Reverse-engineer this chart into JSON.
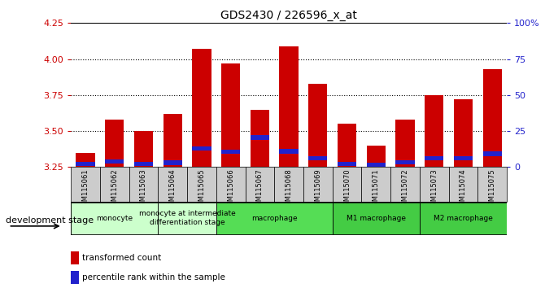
{
  "title": "GDS2430 / 226596_x_at",
  "samples": [
    "GSM115061",
    "GSM115062",
    "GSM115063",
    "GSM115064",
    "GSM115065",
    "GSM115066",
    "GSM115067",
    "GSM115068",
    "GSM115069",
    "GSM115070",
    "GSM115071",
    "GSM115072",
    "GSM115073",
    "GSM115074",
    "GSM115075"
  ],
  "transformed_count": [
    3.35,
    3.58,
    3.5,
    3.62,
    4.07,
    3.97,
    3.65,
    4.09,
    3.83,
    3.55,
    3.4,
    3.58,
    3.75,
    3.72,
    3.93
  ],
  "blue_segment_bottom": [
    3.255,
    3.275,
    3.257,
    3.265,
    3.365,
    3.34,
    3.44,
    3.345,
    3.295,
    3.258,
    3.252,
    3.268,
    3.298,
    3.298,
    3.328
  ],
  "blue_segment_height": [
    0.03,
    0.03,
    0.03,
    0.03,
    0.03,
    0.03,
    0.03,
    0.03,
    0.03,
    0.03,
    0.03,
    0.03,
    0.03,
    0.03,
    0.03
  ],
  "bar_bottom": 3.25,
  "ylim": [
    3.25,
    4.25
  ],
  "yticks": [
    3.25,
    3.5,
    3.75,
    4.0,
    4.25
  ],
  "right_yticks": [
    0,
    25,
    50,
    75,
    100
  ],
  "red_color": "#cc0000",
  "blue_color": "#2222cc",
  "stage_groups": [
    {
      "label": "monocyte",
      "start": 0,
      "end": 2,
      "color": "#ccffcc"
    },
    {
      "label": "monocyte at intermediate\ndifferentiation stage",
      "start": 3,
      "end": 4,
      "color": "#ccffcc"
    },
    {
      "label": "macrophage",
      "start": 5,
      "end": 8,
      "color": "#55dd55"
    },
    {
      "label": "M1 macrophage",
      "start": 9,
      "end": 11,
      "color": "#44cc44"
    },
    {
      "label": "M2 macrophage",
      "start": 12,
      "end": 14,
      "color": "#44cc44"
    }
  ],
  "legend_labels": [
    "transformed count",
    "percentile rank within the sample"
  ],
  "xlabel_stage": "development stage",
  "tick_color_left": "#cc0000",
  "tick_color_right": "#2222cc",
  "sample_box_color": "#cccccc",
  "bg_color": "#ffffff"
}
